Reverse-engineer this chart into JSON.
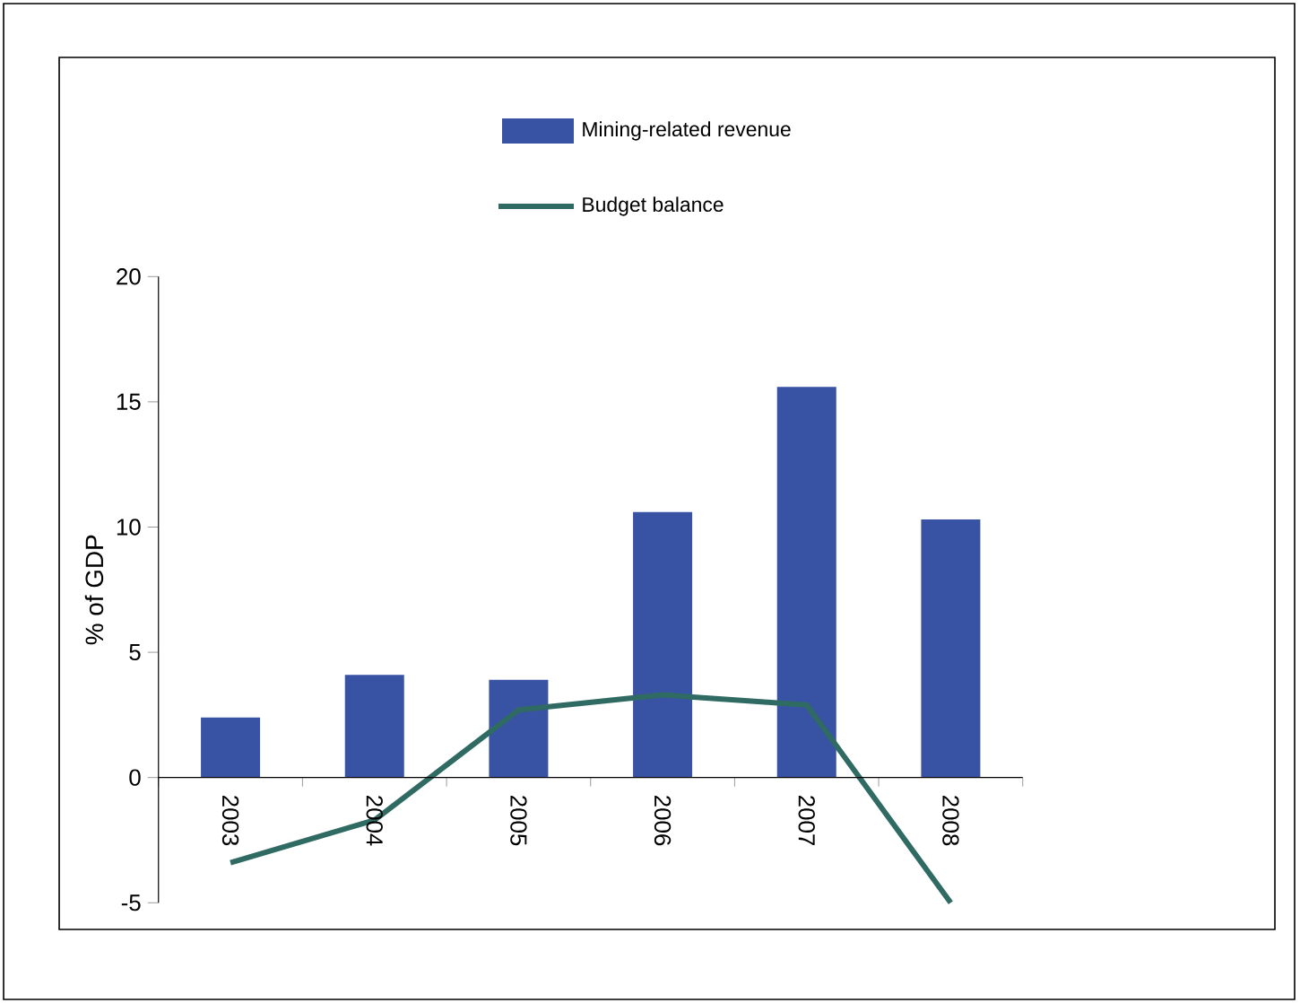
{
  "chart_data": {
    "type": "bar",
    "ylabel": "% of GDP",
    "categories": [
      "2003",
      "2004",
      "2005",
      "2006",
      "2007",
      "2008"
    ],
    "series": [
      {
        "name": "Mining-related revenue",
        "color": "#3953a4",
        "values": [
          2.4,
          4.1,
          3.9,
          10.6,
          15.6,
          10.3
        ]
      },
      {
        "name": "Budget balance",
        "type": "line",
        "color": "#2f6b62",
        "values": [
          -3.4,
          -1.7,
          2.7,
          3.3,
          2.9,
          -5
        ]
      }
    ],
    "ylim": [
      -5,
      20
    ],
    "yticks": [
      -5,
      0,
      5,
      10,
      15,
      20
    ],
    "grid": false,
    "legend": "top",
    "marker": "none"
  }
}
